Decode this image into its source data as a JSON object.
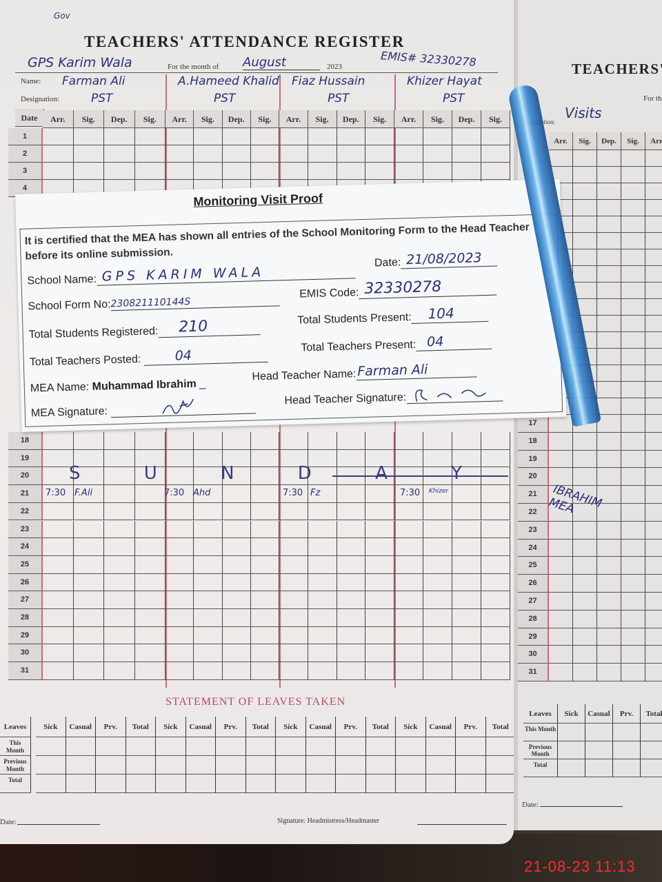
{
  "register": {
    "corner_note": "Gov",
    "title": "TEACHERS' ATTENDANCE REGISTER",
    "school": "GPS Karim Wala",
    "month_label": "For the month of",
    "month": "August",
    "year": "2023",
    "emis": "EMIS# 32330278",
    "name_label": "Name:",
    "designation_label": "Designation:",
    "teachers": [
      {
        "name": "Farman Ali",
        "designation": "PST"
      },
      {
        "name": "A.Hameed Khalid",
        "designation": "PST"
      },
      {
        "name": "Fiaz Hussain",
        "designation": "PST"
      },
      {
        "name": "Khizer Hayat",
        "designation": "PST"
      }
    ],
    "date_header": "Date",
    "sub_headers": [
      "Arr.",
      "Sig.",
      "Dep.",
      "Sig."
    ],
    "top_rows": [
      "1",
      "2",
      "3",
      "4"
    ],
    "bottom_rows": [
      "18",
      "19",
      "20",
      "21",
      "22",
      "23",
      "24",
      "25",
      "26",
      "27",
      "28",
      "29",
      "30",
      "31"
    ],
    "row20_note": "S U N D A Y",
    "row21_entries": [
      {
        "time": "7:30",
        "sig": "F.Ali"
      },
      {
        "time": "7:30",
        "sig": "Ahd"
      },
      {
        "time": "7:30",
        "sig": "Fz"
      },
      {
        "time": "7:30",
        "sig": "Khizer"
      }
    ],
    "leaves_title": "STATEMENT OF LEAVES TAKEN",
    "leaves_header": "Leaves",
    "leaves_cols": [
      "Sick",
      "Casual",
      "Prv.",
      "Total"
    ],
    "leaves_rows": [
      "This Month",
      "Previous Month",
      "Total"
    ],
    "date_footer": "Date:",
    "signature_footer": "Signature: Headmistress/Headmaster"
  },
  "right_page": {
    "title": "TEACHERS'",
    "month_label": "For the",
    "designation_label": "Designation:",
    "name_value": "Visits",
    "sub_headers": [
      "Arr.",
      "Sig.",
      "Dep.",
      "Sig.",
      "Arr."
    ],
    "rows": [
      "17",
      "18",
      "19",
      "20",
      "21",
      "22",
      "23",
      "24",
      "25",
      "26",
      "27",
      "28",
      "29",
      "30",
      "31"
    ],
    "visit_note": "IBRAHIM MEA",
    "leaves_header": "Leaves",
    "leaves_cols": [
      "Sick",
      "Casual",
      "Prv.",
      "Total"
    ],
    "leaves_rows": [
      "This Month",
      "Previous Month",
      "Total"
    ],
    "date_footer": "Date:"
  },
  "slip": {
    "title": "Monitoring Visit Proof",
    "statement": "It is certified that the MEA has shown all entries of the School Monitoring Form to the Head Teacher before its online submission.",
    "school_name_label": "School Name:",
    "school_name": "GPS KARIM WALA",
    "date_label": "Date:",
    "date": "21/08/2023",
    "form_no_label": "School Form No:",
    "form_no": "230821110144S",
    "emis_label": "EMIS Code:",
    "emis": "32330278",
    "students_registered_label": "Total Students Registered:",
    "students_registered": "210",
    "students_present_label": "Total Students Present:",
    "students_present": "104",
    "teachers_posted_label": "Total Teachers Posted:",
    "teachers_posted": "04",
    "teachers_present_label": "Total Teachers Present:",
    "teachers_present": "04",
    "mea_name_label": "MEA Name:",
    "mea_name": "Muhammad Ibrahim",
    "head_teacher_name_label": "Head Teacher Name:",
    "head_teacher_name": "Farman Ali",
    "mea_signature_label": "MEA Signature:",
    "head_teacher_signature_label": "Head Teacher Signature:"
  },
  "timestamp": "21-08-23  11:13",
  "colors": {
    "ink": "#2b2f7a",
    "rule_red": "#c46b7d",
    "timestamp": "#ff2a2a",
    "pen": "#3d8cd3"
  }
}
